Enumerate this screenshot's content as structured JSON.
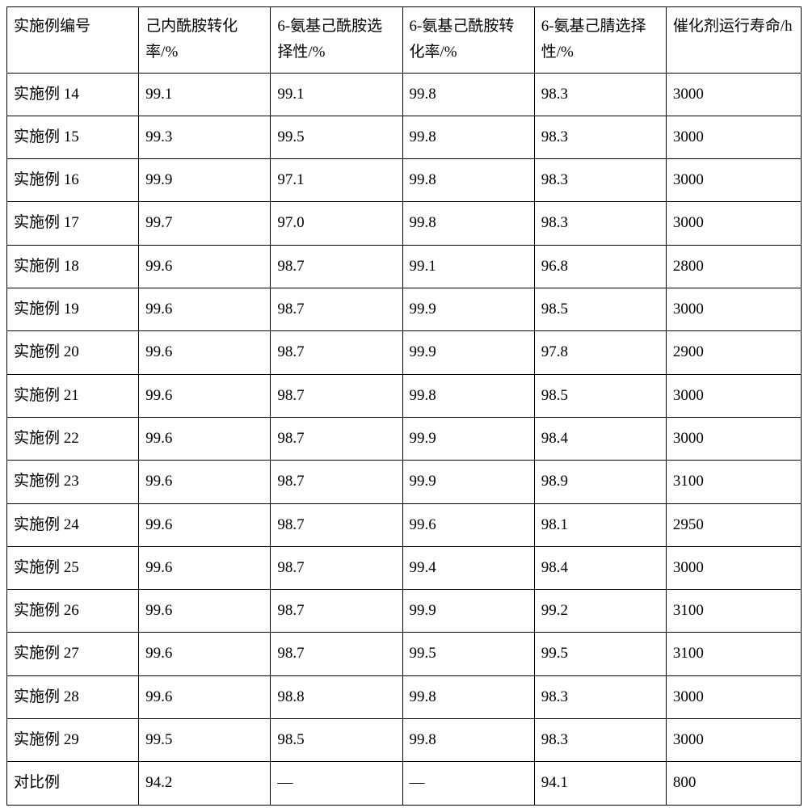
{
  "table": {
    "columns": [
      "实施例编号",
      "己内酰胺转化率/%",
      "6-氨基己酰胺选择性/%",
      "6-氨基己酰胺转化率/%",
      "6-氨基己腈选择性/%",
      "催化剂运行寿命/h"
    ],
    "rows": [
      [
        "实施例 14",
        "99.1",
        "99.1",
        "99.8",
        "98.3",
        "3000"
      ],
      [
        "实施例 15",
        "99.3",
        "99.5",
        "99.8",
        "98.3",
        "3000"
      ],
      [
        "实施例 16",
        "99.9",
        "97.1",
        "99.8",
        "98.3",
        "3000"
      ],
      [
        "实施例 17",
        "99.7",
        "97.0",
        "99.8",
        "98.3",
        "3000"
      ],
      [
        "实施例 18",
        "99.6",
        "98.7",
        "99.1",
        "96.8",
        "2800"
      ],
      [
        "实施例 19",
        "99.6",
        "98.7",
        "99.9",
        "98.5",
        "3000"
      ],
      [
        "实施例 20",
        "99.6",
        "98.7",
        "99.9",
        "97.8",
        "2900"
      ],
      [
        "实施例 21",
        "99.6",
        "98.7",
        "99.8",
        "98.5",
        "3000"
      ],
      [
        "实施例 22",
        "99.6",
        "98.7",
        "99.9",
        "98.4",
        "3000"
      ],
      [
        "实施例 23",
        "99.6",
        "98.7",
        "99.9",
        "98.9",
        "3100"
      ],
      [
        "实施例 24",
        "99.6",
        "98.7",
        "99.6",
        "98.1",
        "2950"
      ],
      [
        "实施例 25",
        "99.6",
        "98.7",
        "99.4",
        "98.4",
        "3000"
      ],
      [
        "实施例 26",
        "99.6",
        "98.7",
        "99.9",
        "99.2",
        "3100"
      ],
      [
        "实施例 27",
        "99.6",
        "98.7",
        "99.5",
        "99.5",
        "3100"
      ],
      [
        "实施例 28",
        "99.6",
        "98.8",
        "99.8",
        "98.3",
        "3000"
      ],
      [
        "实施例 29",
        "99.5",
        "98.5",
        "99.8",
        "98.3",
        "3000"
      ],
      [
        "对比例",
        "94.2",
        "—",
        "—",
        "94.1",
        "800"
      ]
    ],
    "border_color": "#000000",
    "background_color": "#ffffff",
    "text_color": "#000000",
    "font_size": 19,
    "header_line_height": 1.7,
    "cell_line_height": 1.7
  }
}
